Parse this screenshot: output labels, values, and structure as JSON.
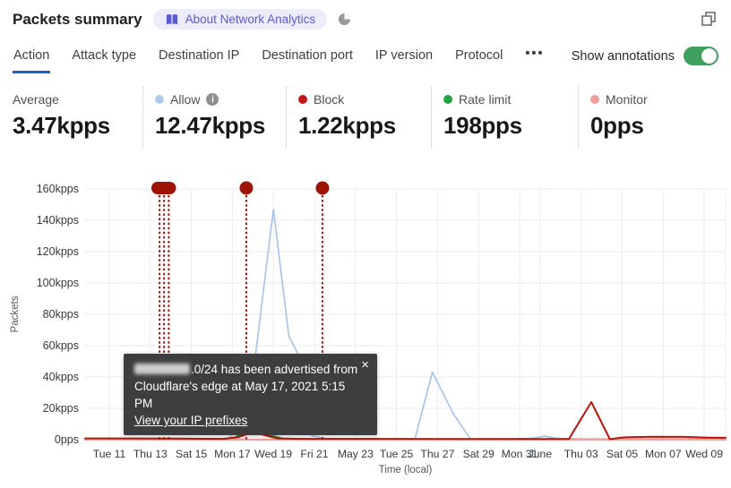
{
  "header": {
    "title": "Packets summary",
    "badge": "About Network Analytics"
  },
  "tabs": {
    "items": [
      {
        "label": "Action",
        "active": true
      },
      {
        "label": "Attack type",
        "active": false
      },
      {
        "label": "Destination IP",
        "active": false
      },
      {
        "label": "Destination port",
        "active": false
      },
      {
        "label": "IP version",
        "active": false
      },
      {
        "label": "Protocol",
        "active": false
      }
    ],
    "more": "•••",
    "accent": "#1663c7"
  },
  "toggle": {
    "label": "Show annotations",
    "on": true,
    "color": "#40a060"
  },
  "stats": [
    {
      "label": "Average",
      "value": "3.47kpps",
      "dot": null,
      "info": false
    },
    {
      "label": "Allow",
      "value": "12.47kpps",
      "dot": "#aecdee",
      "info": true
    },
    {
      "label": "Block",
      "value": "1.22kpps",
      "dot": "#c21a12",
      "info": false
    },
    {
      "label": "Rate limit",
      "value": "198pps",
      "dot": "#23a342",
      "info": false
    },
    {
      "label": "Monitor",
      "value": "0pps",
      "dot": "#f49e9e",
      "info": false
    }
  ],
  "tooltip": {
    "line1_suffix": ".0/24 has been advertised from",
    "line2": "Cloudflare's edge at May 17, 2021 5:15 PM",
    "link": "View your IP prefixes",
    "close": "×"
  },
  "chart_data": {
    "type": "line",
    "xlabel": "Time (local)",
    "ylabel": "Packets",
    "y_unit": "kpps",
    "ylim": [
      0,
      160
    ],
    "grid": true,
    "x_unit": "day index, May 2021 (11 = May 11, 32 = Jun 1, 40 = Jun 9)",
    "y_ticks": [
      {
        "k": 0,
        "label": "0pps"
      },
      {
        "k": 20,
        "label": "20kpps"
      },
      {
        "k": 40,
        "label": "40kpps"
      },
      {
        "k": 60,
        "label": "60kpps"
      },
      {
        "k": 80,
        "label": "80kpps"
      },
      {
        "k": 100,
        "label": "100kpps"
      },
      {
        "k": 120,
        "label": "120kpps"
      },
      {
        "k": 140,
        "label": "140kpps"
      },
      {
        "k": 160,
        "label": "160kpps"
      }
    ],
    "x_ticks": [
      {
        "day": 11,
        "label": "Tue 11"
      },
      {
        "day": 13,
        "label": "Thu 13"
      },
      {
        "day": 15,
        "label": "Sat 15"
      },
      {
        "day": 17,
        "label": "Mon 17"
      },
      {
        "day": 19,
        "label": "Wed 19"
      },
      {
        "day": 21,
        "label": "Fri 21"
      },
      {
        "day": 23,
        "label": "May 23"
      },
      {
        "day": 25,
        "label": "Tue 25"
      },
      {
        "day": 27,
        "label": "Thu 27"
      },
      {
        "day": 29,
        "label": "Sat 29"
      },
      {
        "day": 31,
        "label": "Mon 31"
      },
      {
        "day": 32,
        "label": "June"
      },
      {
        "day": 34,
        "label": "Thu 03"
      },
      {
        "day": 36,
        "label": "Sat 05"
      },
      {
        "day": 38,
        "label": "Mon 07"
      },
      {
        "day": 40,
        "label": "Wed 09"
      }
    ],
    "series": [
      {
        "name": "Allow",
        "color": "#a9c6e8",
        "width": 1.7,
        "points": [
          [
            9.82,
            0.35
          ],
          [
            13,
            0.35
          ],
          [
            15.5,
            0.3
          ],
          [
            16.4,
            0.05
          ],
          [
            16.9,
            0.6
          ],
          [
            17.15,
            19
          ],
          [
            17.5,
            32
          ],
          [
            17.9,
            26
          ],
          [
            18.15,
            56
          ],
          [
            19.0,
            147
          ],
          [
            19.75,
            66
          ],
          [
            20.15,
            56
          ],
          [
            20.85,
            2.5
          ],
          [
            21.6,
            0.6
          ],
          [
            23.5,
            0.5
          ],
          [
            25.5,
            0.4
          ],
          [
            25.9,
            0.6
          ],
          [
            26.75,
            43
          ],
          [
            27.75,
            17
          ],
          [
            28.6,
            0.5
          ],
          [
            30.5,
            0.4
          ],
          [
            31.7,
            1.0
          ],
          [
            32.2,
            2.3
          ],
          [
            32.9,
            0.6
          ],
          [
            34,
            0.4
          ],
          [
            37,
            0.35
          ],
          [
            41.04,
            0.4
          ]
        ]
      },
      {
        "name": "Rate limit",
        "color": "#2f8a3d",
        "width": 2.2,
        "points": [
          [
            9.82,
            0.1
          ],
          [
            16.3,
            0.05
          ],
          [
            17.1,
            1.3
          ],
          [
            18.0,
            6.5
          ],
          [
            18.7,
            3.2
          ],
          [
            19.5,
            0.5
          ],
          [
            20.3,
            0.1
          ],
          [
            41.04,
            0.08
          ]
        ]
      },
      {
        "name": "Monitor",
        "color": "#f2a0a0",
        "width": 2.2,
        "points": [
          [
            9.82,
            0.02
          ],
          [
            41.04,
            0.02
          ]
        ]
      },
      {
        "name": "Block",
        "color": "#b5170a",
        "width": 2.0,
        "points": [
          [
            9.82,
            0.8
          ],
          [
            14,
            0.7
          ],
          [
            16.6,
            0.5
          ],
          [
            17.3,
            1.6
          ],
          [
            18.0,
            4.8
          ],
          [
            19.2,
            0.8
          ],
          [
            20.5,
            0.5
          ],
          [
            24,
            0.5
          ],
          [
            28,
            0.4
          ],
          [
            31,
            0.4
          ],
          [
            33.4,
            0.4
          ],
          [
            34.5,
            24
          ],
          [
            35.4,
            0.3
          ],
          [
            36.1,
            1.5
          ],
          [
            37.5,
            1.9
          ],
          [
            39,
            1.8
          ],
          [
            40.2,
            1.3
          ],
          [
            41.04,
            1.2
          ]
        ]
      }
    ],
    "annotations": {
      "color": "#9e1508",
      "lines_days": [
        13.45,
        13.67,
        13.9,
        17.68,
        21.39
      ],
      "markers": [
        {
          "type": "pill",
          "from_day": 13.05,
          "to_day": 14.25
        },
        {
          "type": "dot",
          "day": 17.68
        },
        {
          "type": "dot",
          "day": 21.39
        }
      ]
    }
  }
}
